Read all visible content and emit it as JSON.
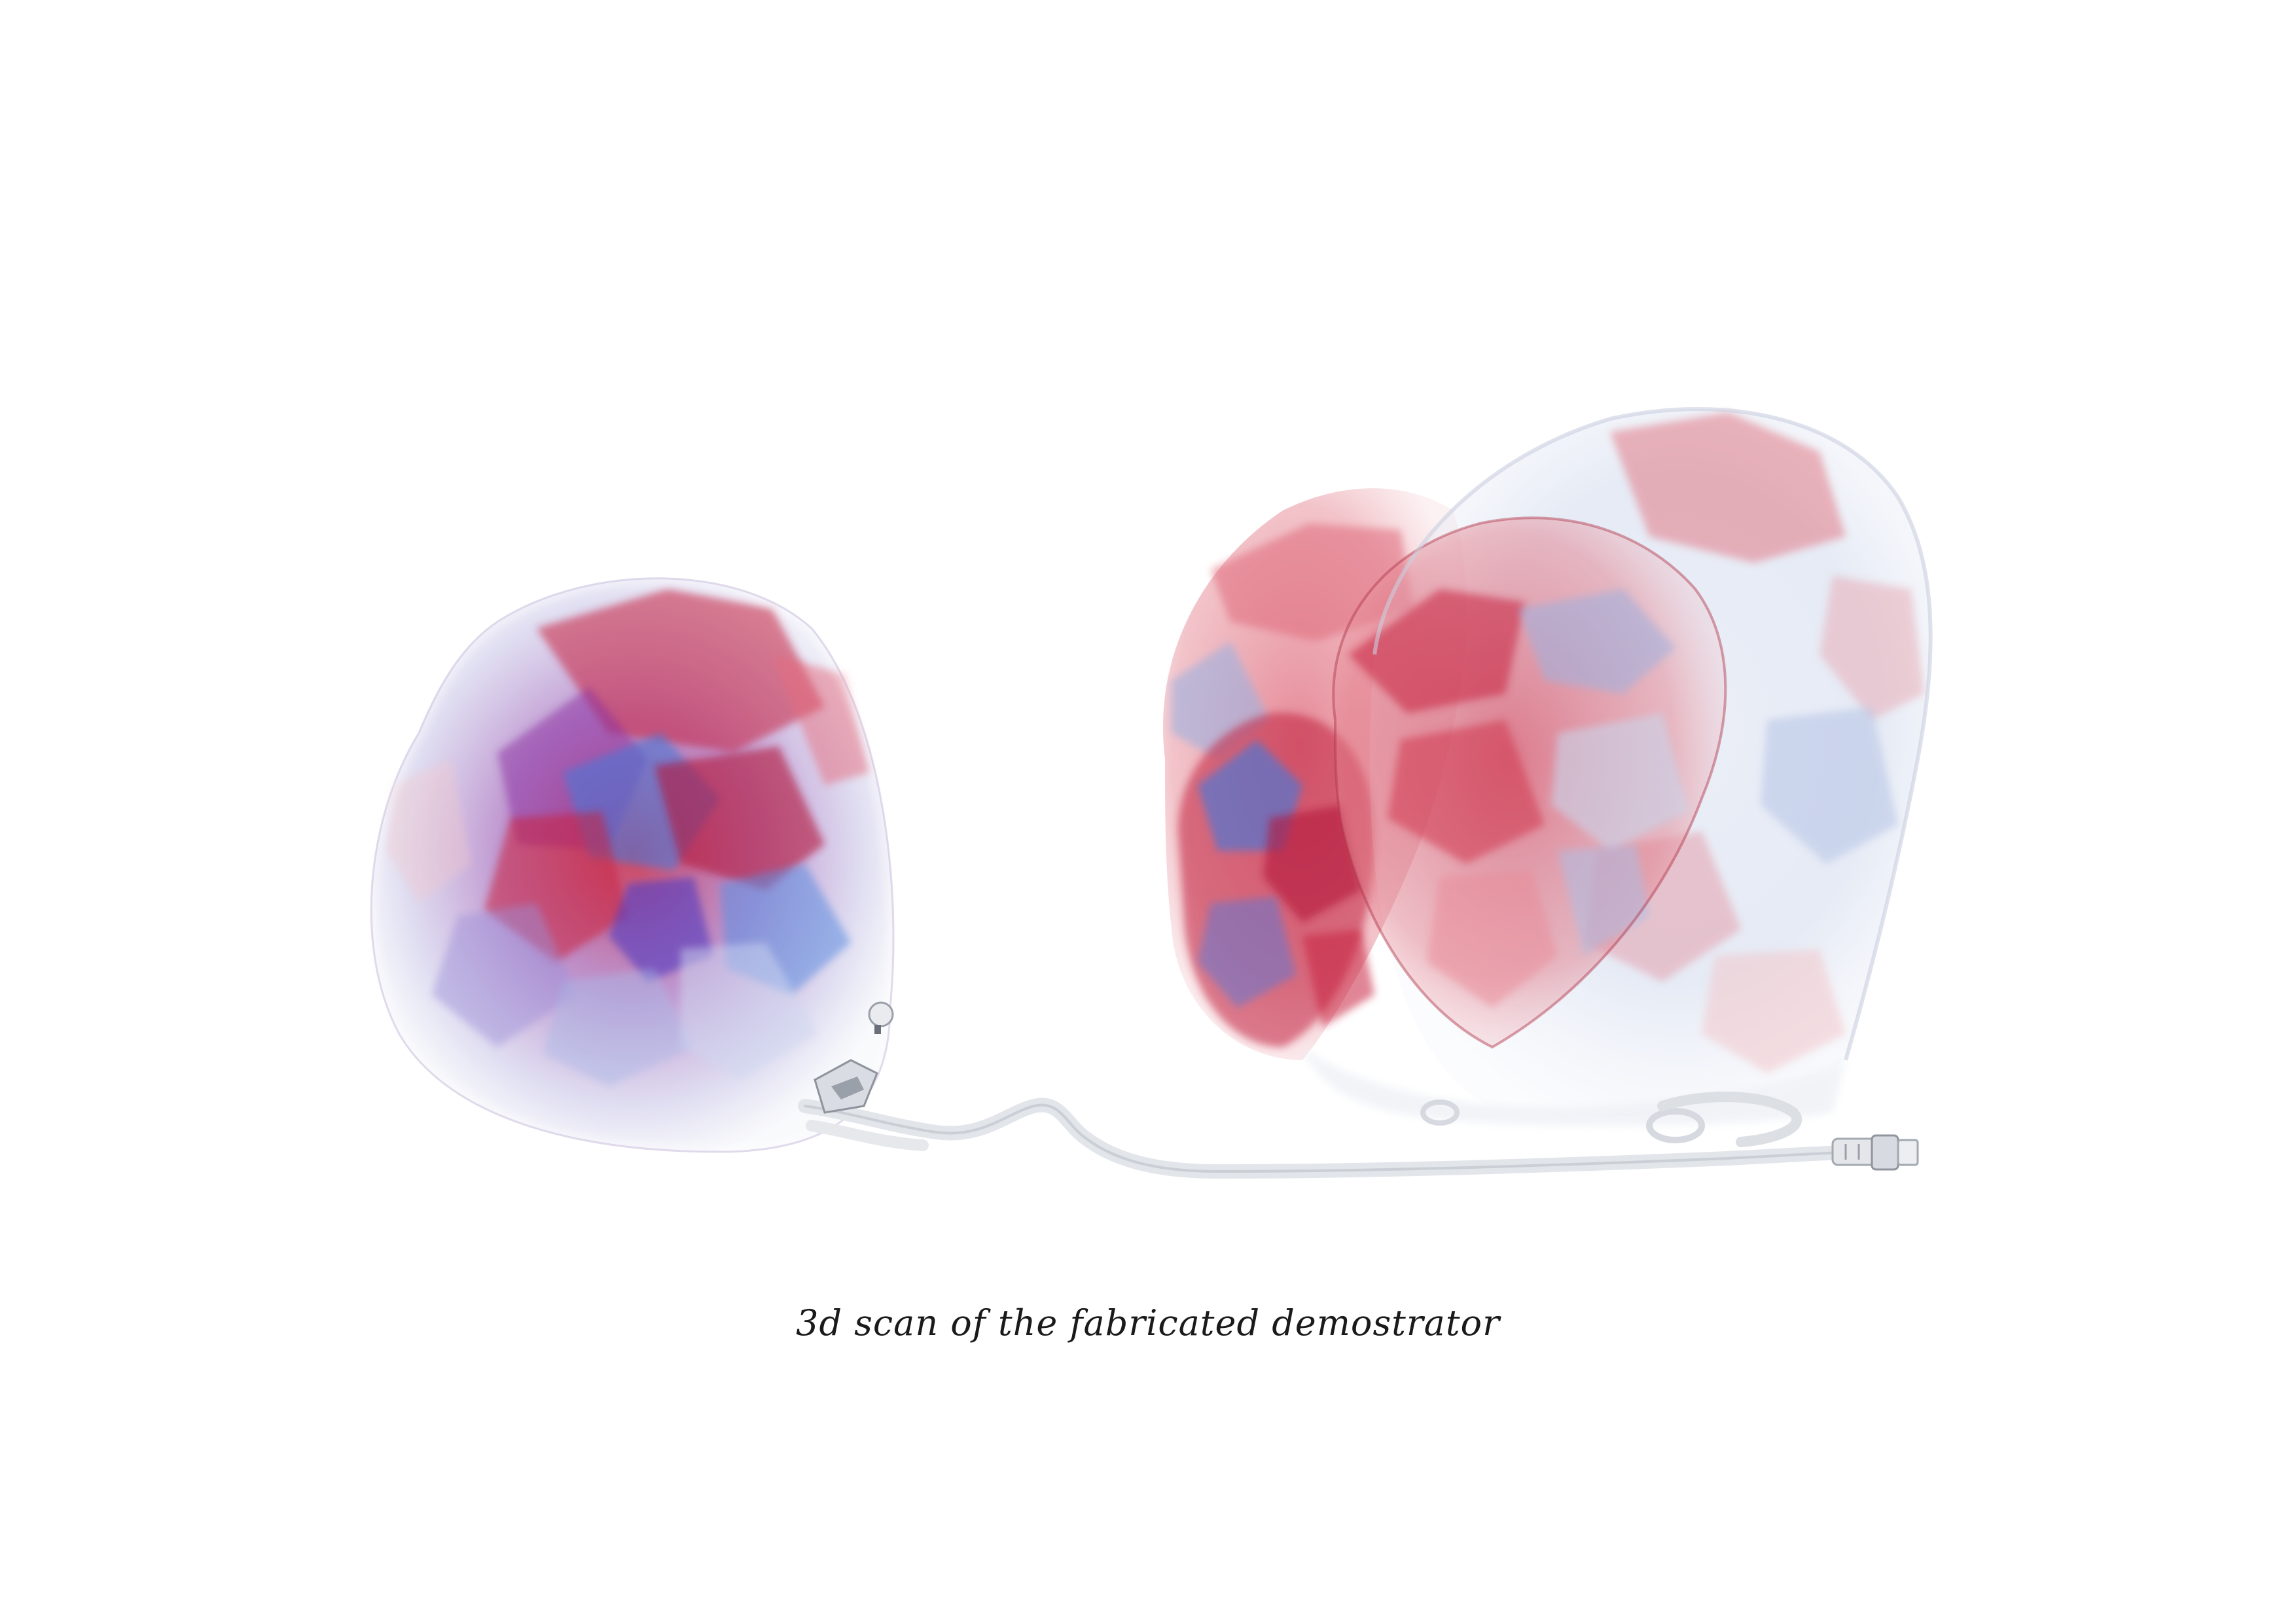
{
  "caption": "3d scan of the fabricated demostrator",
  "colors": {
    "background": "#ffffff",
    "red": "#c8243f",
    "deep_red": "#a8102e",
    "blue": "#4a78d8",
    "violet": "#6a4fc8",
    "pale_blue": "#c9d4ea",
    "pale_pink": "#f2c8cc",
    "tube": "#e2e5ea",
    "caption_text": "#1a1a1a"
  },
  "objects": [
    {
      "name": "left-bubble"
    },
    {
      "name": "right-bubble-cluster"
    },
    {
      "name": "connecting-tube"
    },
    {
      "name": "valve-connector"
    }
  ]
}
